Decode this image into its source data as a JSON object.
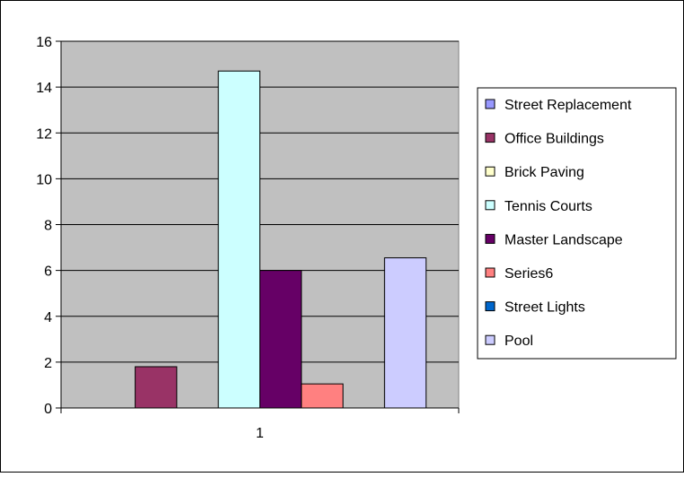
{
  "chart_data": {
    "type": "bar",
    "categories": [
      "1"
    ],
    "series": [
      {
        "name": "Street Replacement",
        "values": [
          0
        ],
        "color": "#9999ff"
      },
      {
        "name": "Office Buildings",
        "values": [
          1.8
        ],
        "color": "#993366"
      },
      {
        "name": "Brick Paving",
        "values": [
          0
        ],
        "color": "#ffffcc"
      },
      {
        "name": "Tennis Courts",
        "values": [
          14.7
        ],
        "color": "#ccffff"
      },
      {
        "name": "Master Landscape",
        "values": [
          6.0
        ],
        "color": "#660066"
      },
      {
        "name": "Series6",
        "values": [
          1.05
        ],
        "color": "#ff8080"
      },
      {
        "name": "Street Lights",
        "values": [
          0
        ],
        "color": "#0066cc"
      },
      {
        "name": "Pool",
        "values": [
          6.55
        ],
        "color": "#ccccff"
      }
    ],
    "y_ticks": [
      "0",
      "2",
      "4",
      "6",
      "8",
      "10",
      "12",
      "14",
      "16"
    ],
    "ylim": [
      0,
      16
    ],
    "grid": true,
    "legend_position": "right",
    "plot_background": "#c0c0c0",
    "title": "",
    "xlabel": "",
    "ylabel": ""
  }
}
